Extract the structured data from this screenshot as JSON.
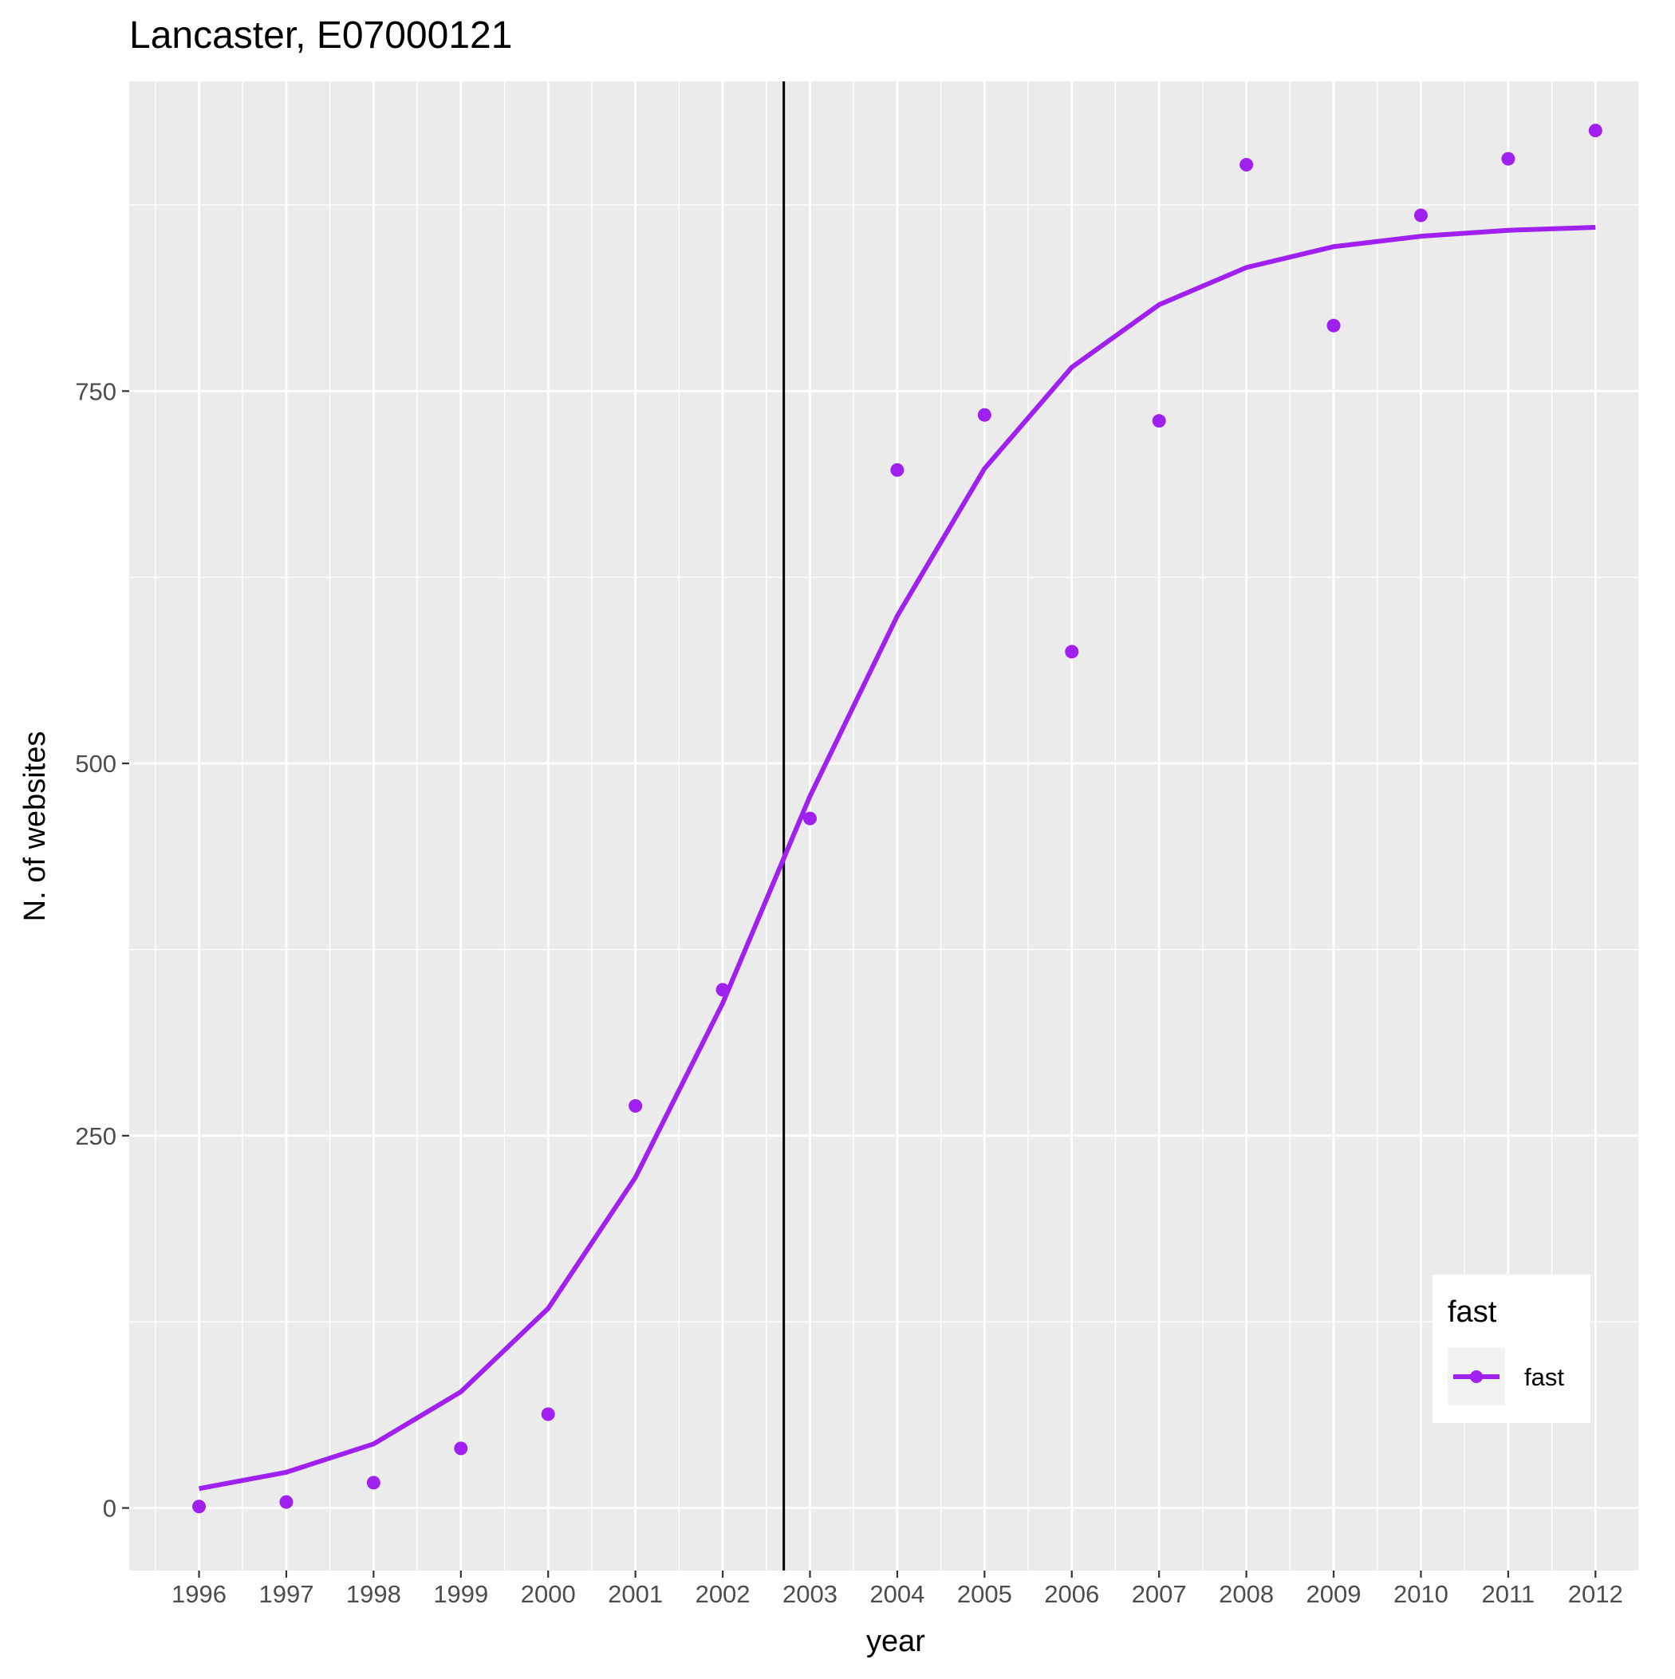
{
  "chart_data": {
    "type": "line",
    "title": "Lancaster, E07000121",
    "xlabel": "year",
    "ylabel": "N. of websites",
    "x": [
      1996,
      1997,
      1998,
      1999,
      2000,
      2001,
      2002,
      2003,
      2004,
      2005,
      2006,
      2007,
      2008,
      2009,
      2010,
      2011,
      2012
    ],
    "xlim": [
      1995.2,
      2012.5
    ],
    "ylim": [
      -42,
      958
    ],
    "x_ticks": [
      "1996",
      "1997",
      "1998",
      "1999",
      "2000",
      "2001",
      "2002",
      "2003",
      "2004",
      "2005",
      "2006",
      "2007",
      "2008",
      "2009",
      "2010",
      "2011",
      "2012"
    ],
    "y_ticks": [
      0,
      250,
      500,
      750
    ],
    "y_tick_labels": [
      "0",
      "250",
      "500",
      "750"
    ],
    "vline_x": 2002.7,
    "grid": true,
    "legend_position": "bottom-right",
    "legend_title": "fast",
    "series": [
      {
        "name": "fast",
        "kind": "points",
        "color": "#A020F0",
        "values": [
          1,
          4,
          17,
          40,
          63,
          270,
          348,
          463,
          697,
          734,
          575,
          730,
          902,
          794,
          868,
          906,
          925
        ]
      },
      {
        "name": "fast",
        "kind": "line",
        "color": "#A020F0",
        "values": [
          13,
          24,
          43,
          78,
          134,
          222,
          339,
          478,
          599,
          698,
          766,
          808,
          833,
          847,
          854,
          858,
          860
        ]
      }
    ]
  }
}
